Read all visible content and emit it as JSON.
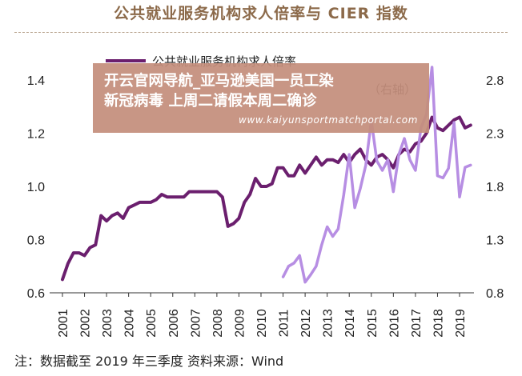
{
  "title": "公共就业服务机构求人倍率与 CIER 指数",
  "note": "注：数据截至 2019 年三季度 资料来源：Wind",
  "overlay": {
    "headline_line1": "开云官网导航_亚马逊美国一员工染",
    "headline_line2": "新冠病毒 上周二请假本周二确诊",
    "url": "www.kaiyunsportmatchportal.com"
  },
  "colors": {
    "primary_line": "#6b1f6e",
    "secondary_line": "#b78ee3",
    "overlay_bg": "#c48e7c"
  },
  "chart_data": {
    "type": "line",
    "title": "公共就业服务机构求人倍率与 CIER 指数",
    "legend": {
      "entries": [
        "公共就业服务机构求人倍率",
        "（右轴）"
      ],
      "placement": "top-left"
    },
    "x_ticks": [
      "2001",
      "2002",
      "2003",
      "2004",
      "2005",
      "2006",
      "2007",
      "2008",
      "2009",
      "2010",
      "2011",
      "2012",
      "2013",
      "2014",
      "2015",
      "2016",
      "2017",
      "2018",
      "2019"
    ],
    "y_left": {
      "ticks": [
        "0.6",
        "0.8",
        "1.0",
        "1.2",
        "1.4"
      ],
      "range": [
        0.6,
        1.4
      ]
    },
    "y_right": {
      "ticks": [
        "0.8",
        "1.3",
        "1.8",
        "2.3",
        "2.8"
      ],
      "range": [
        0.8,
        2.8
      ]
    },
    "series": [
      {
        "name": "公共就业服务机构求人倍率",
        "axis": "left",
        "x": [
          2001.0,
          2001.25,
          2001.5,
          2001.75,
          2002.0,
          2002.25,
          2002.5,
          2002.75,
          2003.0,
          2003.25,
          2003.5,
          2003.75,
          2004.0,
          2004.25,
          2004.5,
          2004.75,
          2005.0,
          2005.25,
          2005.5,
          2005.75,
          2006.0,
          2006.25,
          2006.5,
          2006.75,
          2007.0,
          2007.25,
          2007.5,
          2007.75,
          2008.0,
          2008.25,
          2008.5,
          2008.75,
          2009.0,
          2009.25,
          2009.5,
          2009.75,
          2010.0,
          2010.25,
          2010.5,
          2010.75,
          2011.0,
          2011.25,
          2011.5,
          2011.75,
          2012.0,
          2012.25,
          2012.5,
          2012.75,
          2013.0,
          2013.25,
          2013.5,
          2013.75,
          2014.0,
          2014.25,
          2014.5,
          2014.75,
          2015.0,
          2015.25,
          2015.5,
          2015.75,
          2016.0,
          2016.25,
          2016.5,
          2016.75,
          2017.0,
          2017.25,
          2017.5,
          2017.75,
          2018.0,
          2018.25,
          2018.5,
          2018.75,
          2019.0,
          2019.25,
          2019.5
        ],
        "values": [
          0.65,
          0.71,
          0.75,
          0.75,
          0.74,
          0.77,
          0.78,
          0.89,
          0.87,
          0.89,
          0.9,
          0.88,
          0.92,
          0.93,
          0.94,
          0.94,
          0.94,
          0.95,
          0.97,
          0.96,
          0.96,
          0.96,
          0.96,
          0.98,
          0.98,
          0.98,
          0.98,
          0.98,
          0.98,
          0.96,
          0.85,
          0.86,
          0.88,
          0.94,
          0.97,
          1.03,
          1.0,
          1.0,
          1.01,
          1.07,
          1.07,
          1.04,
          1.04,
          1.08,
          1.05,
          1.08,
          1.11,
          1.08,
          1.1,
          1.1,
          1.09,
          1.12,
          1.09,
          1.12,
          1.14,
          1.1,
          1.08,
          1.11,
          1.12,
          1.1,
          1.07,
          1.12,
          1.14,
          1.13,
          1.16,
          1.17,
          1.2,
          1.26,
          1.22,
          1.21,
          1.23,
          1.25,
          1.26,
          1.22,
          1.23
        ]
      },
      {
        "name": "CIER",
        "axis": "right",
        "x": [
          2011.0,
          2011.25,
          2011.5,
          2011.75,
          2012.0,
          2012.25,
          2012.5,
          2012.75,
          2013.0,
          2013.25,
          2013.5,
          2013.75,
          2014.0,
          2014.25,
          2014.5,
          2014.75,
          2015.0,
          2015.25,
          2015.5,
          2015.75,
          2016.0,
          2016.25,
          2016.5,
          2016.75,
          2017.0,
          2017.25,
          2017.5,
          2017.75,
          2018.0,
          2018.25,
          2018.5,
          2018.75,
          2019.0,
          2019.25,
          2019.5
        ],
        "values": [
          0.95,
          1.05,
          1.08,
          1.15,
          0.9,
          0.97,
          1.05,
          1.25,
          1.42,
          1.33,
          1.4,
          1.72,
          2.1,
          1.6,
          1.78,
          2.0,
          2.42,
          2.04,
          1.95,
          2.05,
          1.75,
          2.1,
          2.25,
          2.05,
          1.95,
          2.35,
          2.48,
          2.92,
          1.9,
          1.88,
          1.97,
          2.4,
          1.7,
          1.98,
          2.0
        ]
      }
    ]
  }
}
